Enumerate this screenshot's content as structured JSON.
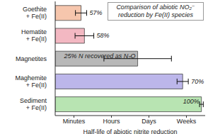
{
  "chart_data": {
    "type": "bar",
    "orientation": "horizontal",
    "title": "Comparison of abiotic NO₂⁻ reduction by Fe(II) species",
    "x_label": "Half-life of abiotic nitrite reduction",
    "categories": [
      "Goethite + Fe(II)",
      "Hematite + Fe(II)",
      "Magnetites",
      "Maghemite + Fe(II)",
      "Sediment + Fe(II)"
    ],
    "values": [
      1.19,
      1.28,
      2.7,
      3.9,
      4.4
    ],
    "errors": [
      0.15,
      0.25,
      0.9,
      0.15,
      0.05
    ],
    "annotations": [
      "57%",
      "58%",
      "25% N recovered as N₂O",
      "70%",
      "100%"
    ],
    "colors": [
      "#f6c6ad",
      "#f3b8c2",
      "#b8b8b8",
      "#bcb6ea",
      "#b8e4b2"
    ],
    "xlim": [
      0.5,
      4.5
    ],
    "xticks": [
      {
        "value": 1,
        "label": "Minutes"
      },
      {
        "value": 2,
        "label": "Hours"
      },
      {
        "value": 3,
        "label": "Days"
      },
      {
        "value": 4,
        "label": "Weeks"
      }
    ],
    "grid": false
  }
}
